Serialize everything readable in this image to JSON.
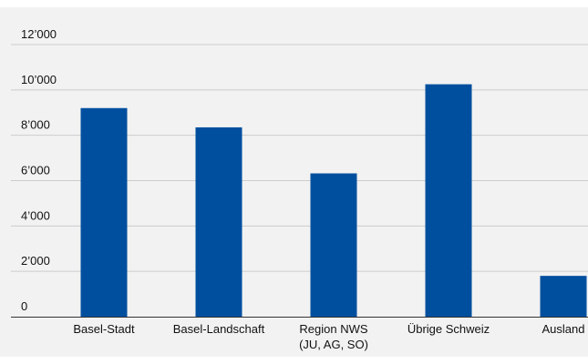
{
  "chart_data": {
    "type": "bar",
    "title": "",
    "xlabel": "",
    "ylabel": "",
    "ylim": [
      0,
      12000
    ],
    "yticks": [
      0,
      2000,
      4000,
      6000,
      8000,
      10000,
      12000
    ],
    "ytick_labels": [
      "0",
      "2’000",
      "4’000",
      "6’000",
      "8’000",
      "10’000",
      "12’000"
    ],
    "categories": [
      [
        "Basel-Stadt"
      ],
      [
        "Basel-Landschaft"
      ],
      [
        "Region NWS",
        "(JU, AG, SO)"
      ],
      [
        "Übrige Schweiz"
      ],
      [
        "Ausland"
      ]
    ],
    "values": [
      9200,
      8350,
      6320,
      10250,
      1800
    ],
    "grid": true,
    "legend": "none",
    "colors": {
      "bar": "#004f9f",
      "grid": "#cccccc",
      "axis": "#333333",
      "background": "#f2f2f2"
    }
  }
}
